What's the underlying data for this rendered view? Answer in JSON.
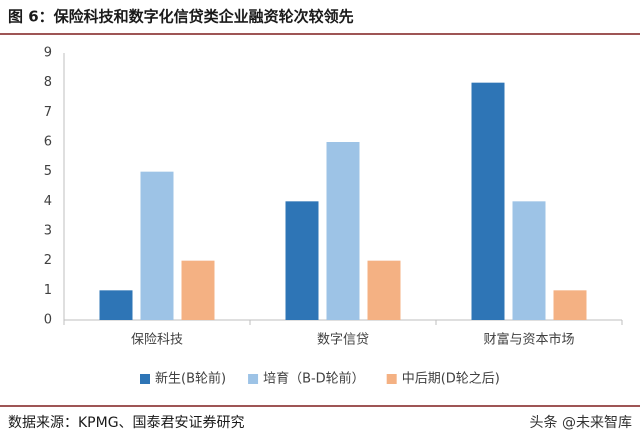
{
  "chart_data": {
    "type": "bar",
    "title": "图 6：保险科技和数字化信贷类企业融资轮次较领先",
    "categories": [
      "保险科技",
      "数字信贷",
      "财富与资本市场"
    ],
    "series": [
      {
        "name": "新生(B轮前)",
        "color": "#2e75b6",
        "values": [
          1,
          4,
          8
        ]
      },
      {
        "name": "培育（B-D轮前）",
        "color": "#9dc3e6",
        "values": [
          5,
          6,
          4
        ]
      },
      {
        "name": "中后期(D轮之后)",
        "color": "#f4b183",
        "values": [
          2,
          2,
          1
        ]
      }
    ],
    "ylim": [
      0,
      9
    ],
    "yticks": [
      0,
      1,
      2,
      3,
      4,
      5,
      6,
      7,
      8,
      9
    ],
    "grid": false,
    "legend": "bottom",
    "source": "数据来源：KPMG、国泰君安证券研究",
    "watermark": "头条 @未来智库"
  }
}
